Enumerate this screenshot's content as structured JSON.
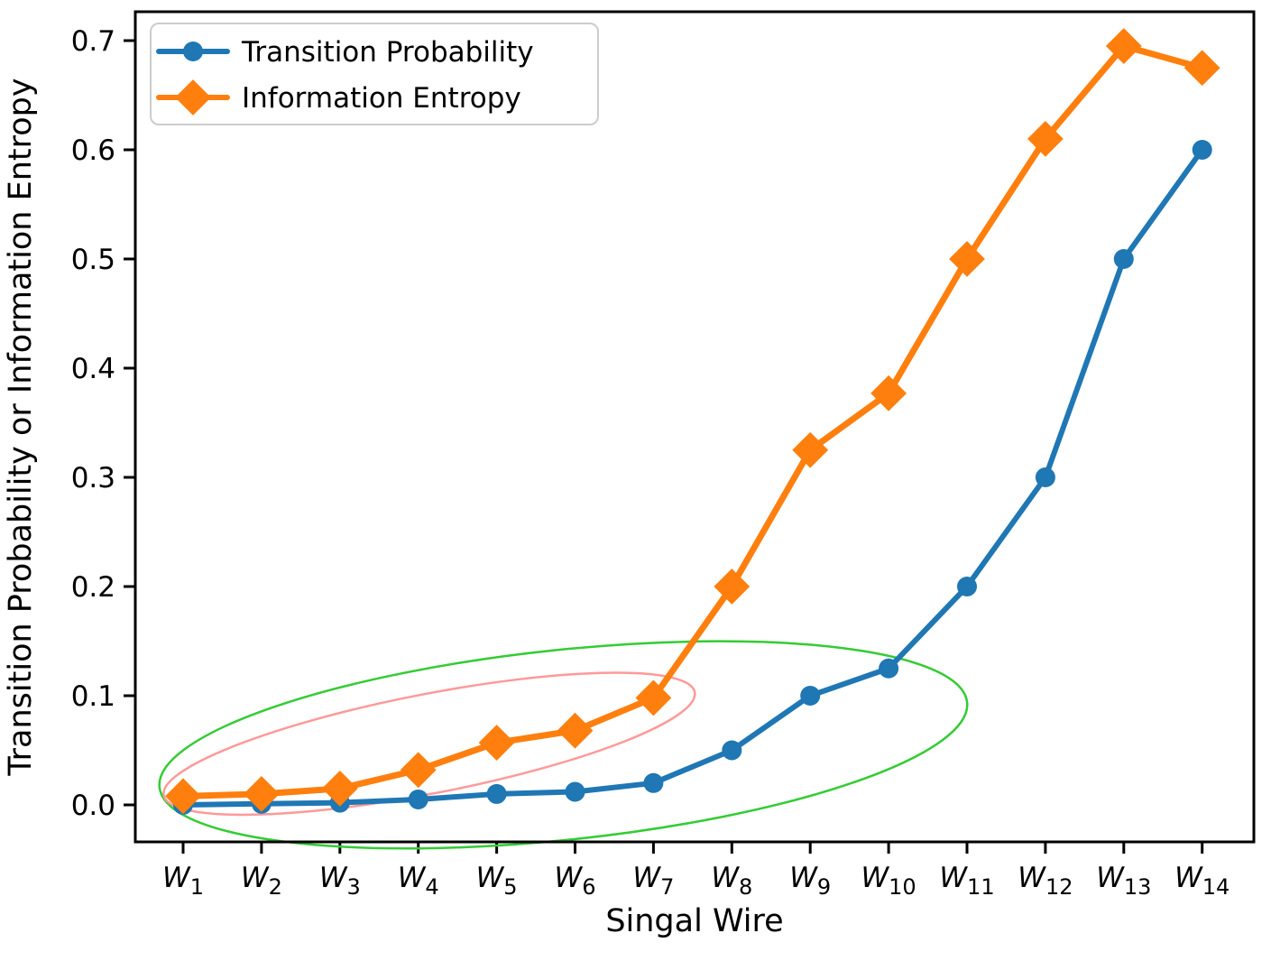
{
  "chart_data": {
    "type": "line",
    "title": "",
    "xlabel": "Singal Wire",
    "ylabel": "Transition Probability or Information Entropy",
    "categories": [
      "W1",
      "W2",
      "W3",
      "W4",
      "W5",
      "W6",
      "W7",
      "W8",
      "W9",
      "W10",
      "W11",
      "W12",
      "W13",
      "W14"
    ],
    "series": [
      {
        "name": "Transition Probability",
        "color": "#1f77b4",
        "marker": "circle",
        "values": [
          0.0,
          0.001,
          0.002,
          0.005,
          0.01,
          0.012,
          0.02,
          0.05,
          0.1,
          0.125,
          0.2,
          0.3,
          0.5,
          0.6
        ]
      },
      {
        "name": "Information Entropy",
        "color": "#ff7f0e",
        "marker": "diamond",
        "values": [
          0.008,
          0.01,
          0.015,
          0.032,
          0.057,
          0.068,
          0.098,
          0.2,
          0.325,
          0.377,
          0.5,
          0.61,
          0.695,
          0.675
        ]
      }
    ],
    "yticks": [
      0.0,
      0.1,
      0.2,
      0.3,
      0.4,
      0.5,
      0.6,
      0.7
    ],
    "ylim": [
      -0.034,
      0.726
    ],
    "grid": false,
    "legend_position": "upper left",
    "annotations": [
      {
        "shape": "ellipse",
        "label": "green-region-ellipse",
        "color": "#33cc33",
        "center_index": 4.85,
        "center_value": 0.055,
        "radius_index": 5.18,
        "radius_value": 0.087,
        "rotation_deg": -6
      },
      {
        "shape": "ellipse",
        "label": "pink-region-ellipse",
        "color": "#ff9999",
        "center_index": 3.14,
        "center_value": 0.056,
        "radius_index": 3.45,
        "radius_value": 0.0455,
        "rotation_deg": -11
      }
    ]
  },
  "legend": {
    "items": [
      {
        "label": "Transition Probability"
      },
      {
        "label": "Information Entropy"
      }
    ]
  }
}
